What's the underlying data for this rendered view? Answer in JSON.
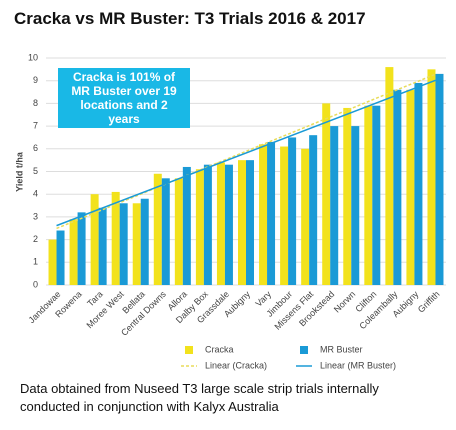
{
  "chart_data": {
    "type": "bar",
    "title": "Cracka vs MR Buster: T3 Trials 2016 & 2017",
    "y_label": "Yield t/ha",
    "annotation": "Cracka is 101% of MR Buster over 19 locations and 2 years",
    "categories": [
      "Jandowae",
      "Rowena",
      "Tara",
      "Moree West",
      "Bellata",
      "Central Downs",
      "Allora",
      "Dalby Box",
      "Grassdale",
      "Aubigny",
      "Vary",
      "Jimbour",
      "Missens Flat",
      "Brookstead",
      "Norwn",
      "Clifton",
      "Coleambally",
      "Aubigny",
      "Griffith"
    ],
    "series": [
      {
        "name": "Cracka",
        "color": "#f2e21c",
        "values": [
          2.0,
          2.9,
          4.0,
          4.1,
          3.6,
          4.9,
          4.7,
          5.1,
          5.4,
          5.5,
          6.2,
          6.1,
          6.0,
          8.0,
          7.8,
          7.9,
          9.6,
          8.6,
          9.5
        ],
        "trendline": {
          "name": "Linear (Cracka)",
          "color": "#e8dc5a",
          "dashed": true
        }
      },
      {
        "name": "MR Buster",
        "color": "#1a9ad6",
        "values": [
          2.4,
          3.2,
          3.4,
          3.6,
          3.8,
          4.7,
          5.2,
          5.3,
          5.3,
          5.5,
          6.3,
          6.5,
          6.6,
          7.0,
          7.0,
          7.9,
          8.6,
          8.9,
          9.3
        ],
        "trendline": {
          "name": "Linear (MR Buster)",
          "color": "#1a9ad6",
          "dashed": false
        }
      }
    ],
    "ylim": [
      0,
      10
    ],
    "yticks": [
      0,
      1,
      2,
      3,
      4,
      5,
      6,
      7,
      8,
      9,
      10
    ],
    "grid": true
  },
  "caption": "Data obtained from Nuseed T3 large scale strip trials internally conducted in conjunction with Kalyx Australia"
}
